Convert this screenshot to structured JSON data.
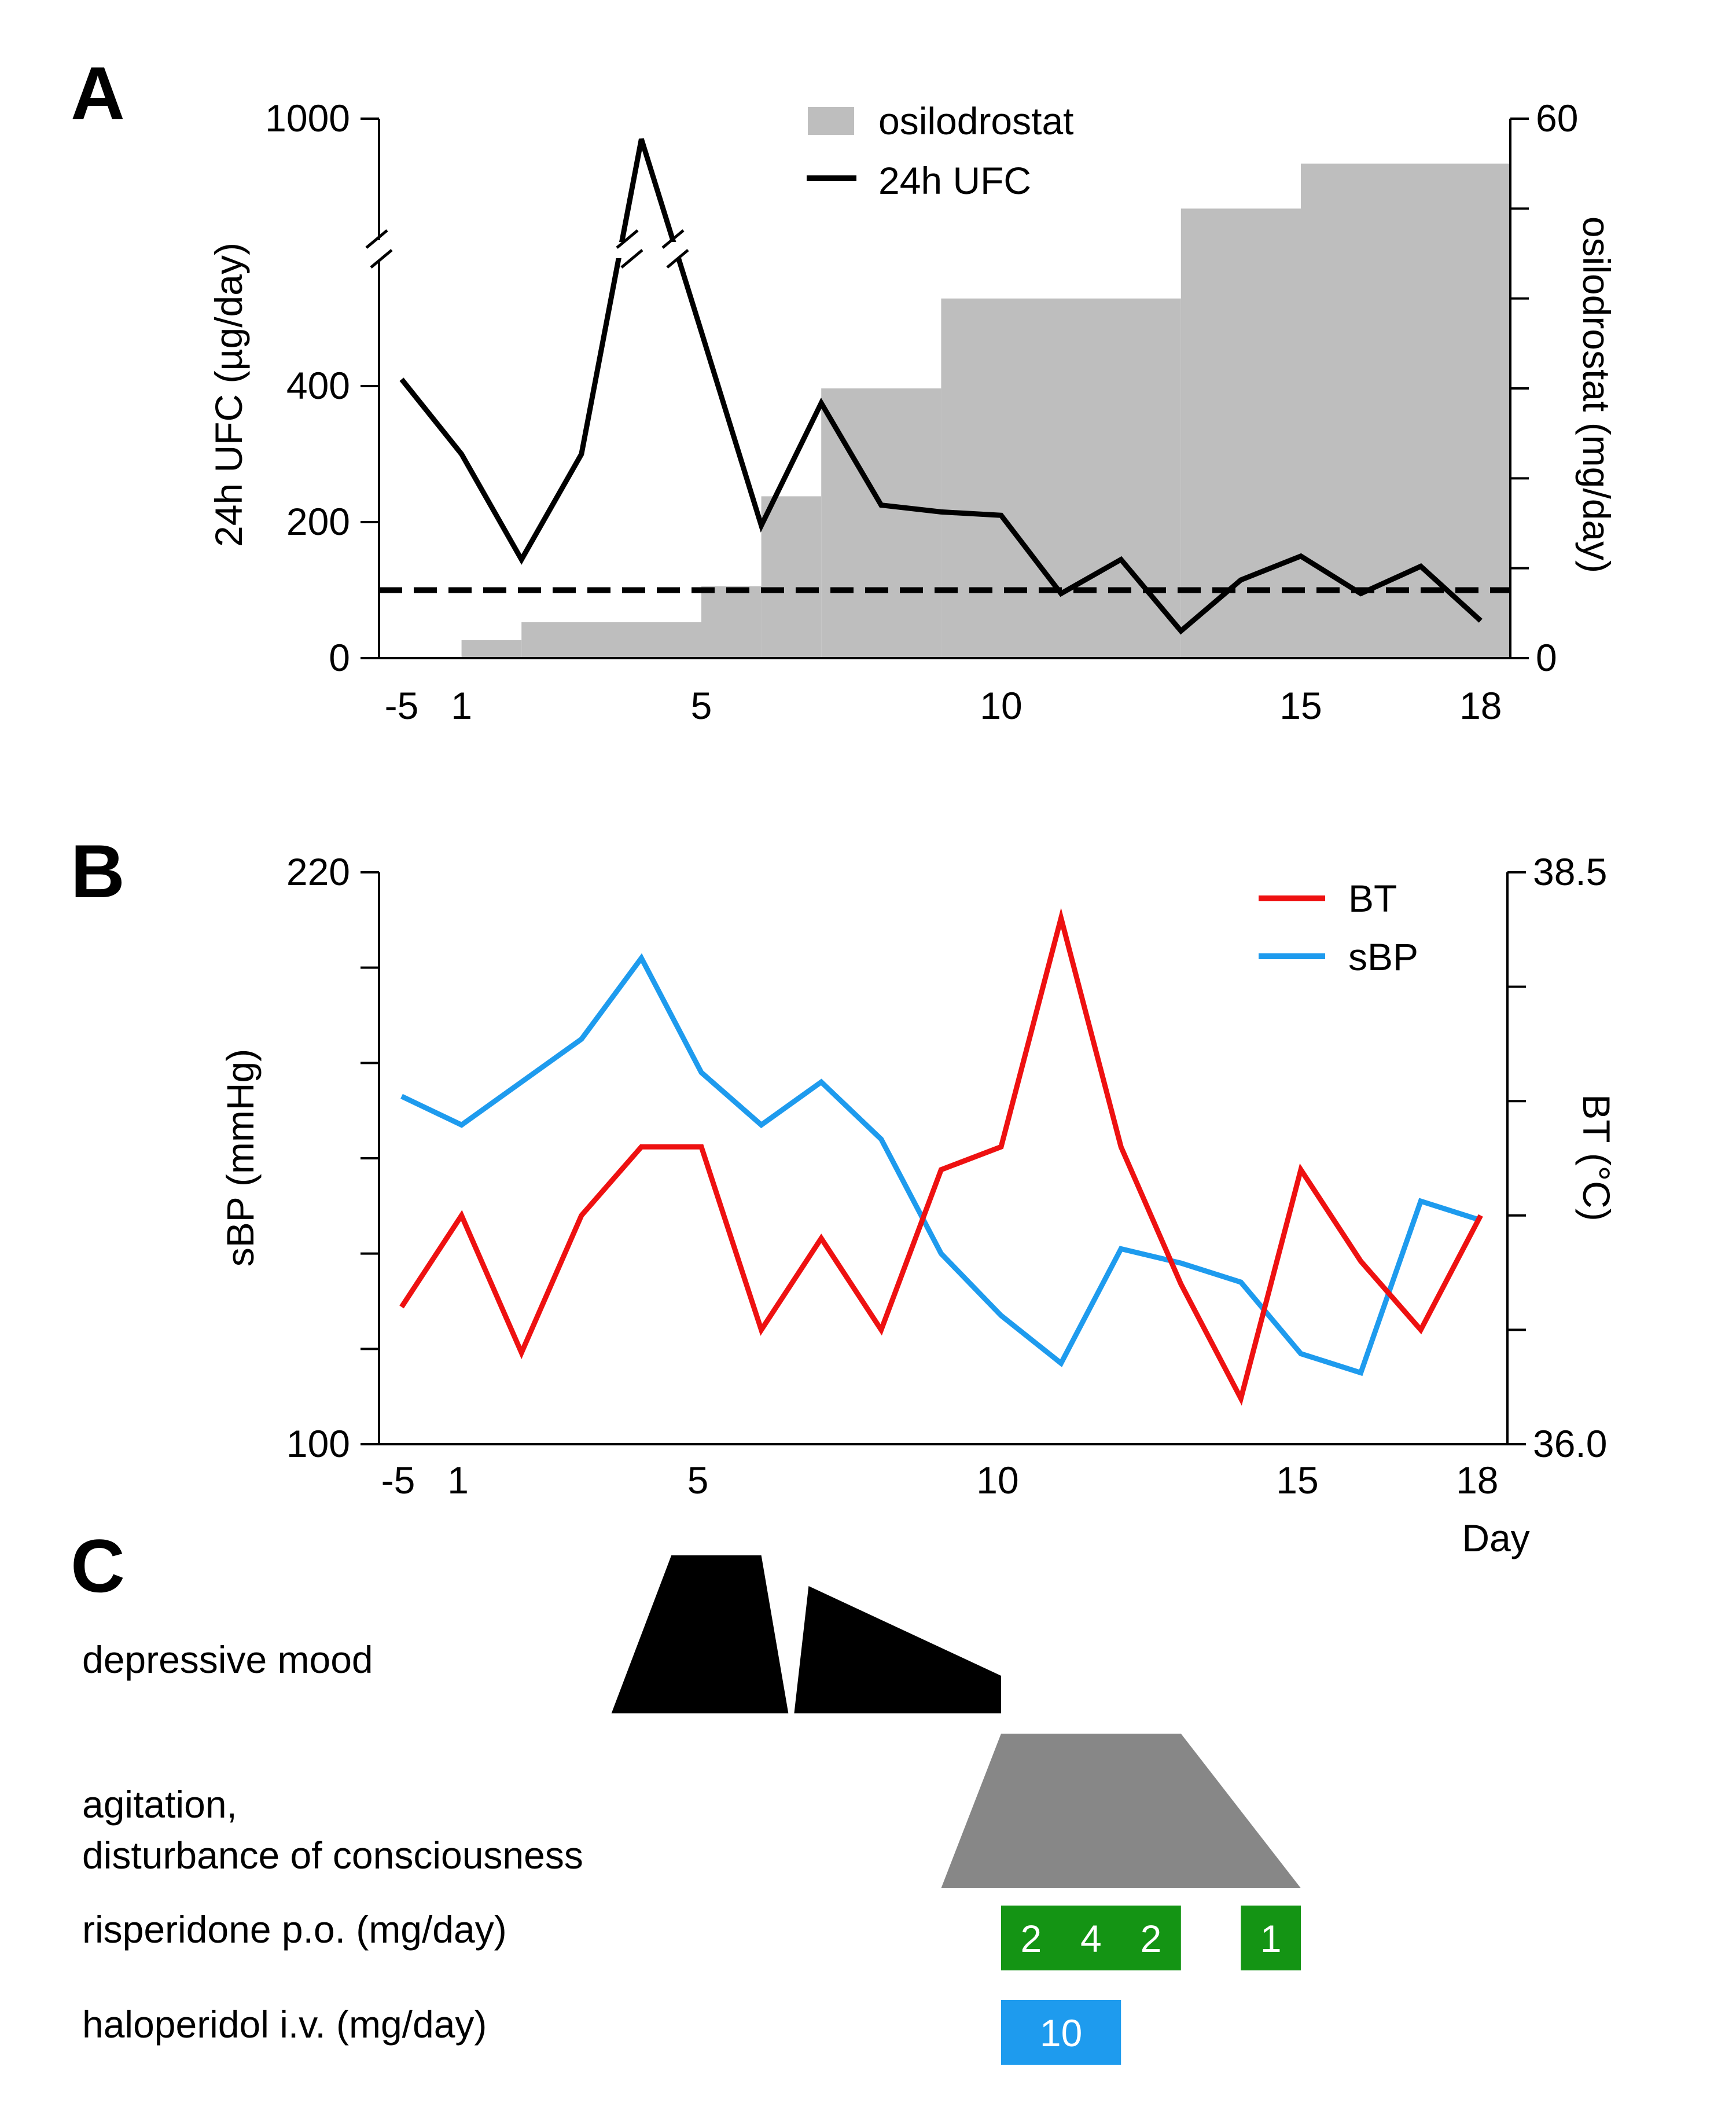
{
  "colors": {
    "osilodrostat": "#bebebe",
    "ufc": "#000000",
    "bt": "#ee1111",
    "sbp": "#1e9bee",
    "depressive": "#000000",
    "agitation": "#878787",
    "risperidone": "#149414",
    "haloperidol": "#1e9bee"
  },
  "chart_data": [
    {
      "panel": "A",
      "type": "line",
      "days_index": [
        "-5",
        "1",
        "2",
        "3",
        "4",
        "5",
        "6",
        "7",
        "8",
        "9",
        "10",
        "11",
        "12",
        "13",
        "14",
        "15",
        "16",
        "17",
        "18"
      ],
      "x_tick_labels": [
        "-5",
        "1",
        "5",
        "10",
        "15",
        "18"
      ],
      "ylabel": "24h UFC (µg/day)",
      "y2label": "osilodrostat (mg/day)",
      "y_ticks": [
        "0",
        "200",
        "400",
        "1000"
      ],
      "y2_ticks": [
        "0",
        "60"
      ],
      "y2_lim": [
        0,
        60
      ],
      "axis_break": true,
      "reference_line": {
        "value": 100,
        "style": "dashed"
      },
      "legend": [
        "osilodrostat",
        "24h UFC"
      ],
      "legend_placement": "top-center",
      "series": [
        {
          "name": "24h UFC",
          "kind": "line",
          "values": [
            410,
            300,
            145,
            300,
            930,
            480,
            195,
            375,
            225,
            215,
            210,
            95,
            145,
            40,
            115,
            150,
            95,
            135,
            55
          ]
        },
        {
          "name": "osilodrostat",
          "kind": "step-area",
          "steps": [
            {
              "start": 1,
              "end": 2,
              "value": 2
            },
            {
              "start": 2,
              "end": 5,
              "value": 4
            },
            {
              "start": 5,
              "end": 6,
              "value": 8
            },
            {
              "start": 6,
              "end": 7,
              "value": 18
            },
            {
              "start": 7,
              "end": 9,
              "value": 30
            },
            {
              "start": 9,
              "end": 13,
              "value": 40
            },
            {
              "start": 13,
              "end": 15,
              "value": 50
            },
            {
              "start": 15,
              "end": 18.5,
              "value": 55
            }
          ]
        }
      ]
    },
    {
      "panel": "B",
      "type": "line",
      "days_index": [
        "-5",
        "1",
        "2",
        "3",
        "4",
        "5",
        "6",
        "7",
        "8",
        "9",
        "10",
        "11",
        "12",
        "13",
        "14",
        "15",
        "16",
        "17",
        "18"
      ],
      "x_tick_labels": [
        "-5",
        "1",
        "5",
        "10",
        "15",
        "18"
      ],
      "xlabel": "Day",
      "ylabel": "sBP (mmHg)",
      "y2label": "BT (°C)",
      "ylim": [
        100,
        220
      ],
      "y2lim": [
        36.0,
        38.5
      ],
      "y_ticks": [
        "100",
        "220"
      ],
      "y2_ticks": [
        "36.0",
        "38.5"
      ],
      "legend": [
        "BT",
        "sBP"
      ],
      "legend_placement": "top-right",
      "series": [
        {
          "name": "BT",
          "axis": "right",
          "values": [
            36.6,
            37.0,
            36.4,
            37.0,
            37.3,
            37.3,
            36.5,
            36.9,
            36.5,
            37.2,
            37.3,
            38.3,
            37.3,
            36.7,
            36.2,
            37.2,
            36.8,
            36.5,
            37.0
          ]
        },
        {
          "name": "sBP",
          "axis": "left",
          "values": [
            173,
            167,
            176,
            185,
            202,
            178,
            167,
            176,
            164,
            140,
            127,
            117,
            141,
            138,
            134,
            119,
            115,
            151,
            147
          ]
        }
      ]
    },
    {
      "panel": "C",
      "type": "timeline",
      "rows": [
        {
          "label": "depressive mood",
          "kind": "shape",
          "segments": [
            {
              "shape": "trapezoid",
              "start": 3.5,
              "end": 6.5,
              "plateau": [
                4.5,
                6.0
              ]
            },
            {
              "shape": "ramp-down",
              "start": 6.5,
              "end": 10.0
            }
          ]
        },
        {
          "label": "agitation,\ndisturbance of consciousness",
          "kind": "shape",
          "segments": [
            {
              "shape": "trapezoid",
              "start": 9.0,
              "end": 15.0,
              "plateau": [
                10.0,
                13.0
              ]
            }
          ]
        }
      ],
      "doses": [
        {
          "label": "risperidone p.o. (mg/day)",
          "blocks": [
            {
              "start": 10,
              "end": 13,
              "values": [
                "2",
                "4",
                "2"
              ]
            },
            {
              "start": 14,
              "end": 15,
              "values": [
                "1"
              ]
            }
          ]
        },
        {
          "label": "haloperidol i.v. (mg/day)",
          "blocks": [
            {
              "start": 10,
              "end": 12,
              "values": [
                "10"
              ]
            }
          ]
        }
      ]
    }
  ]
}
